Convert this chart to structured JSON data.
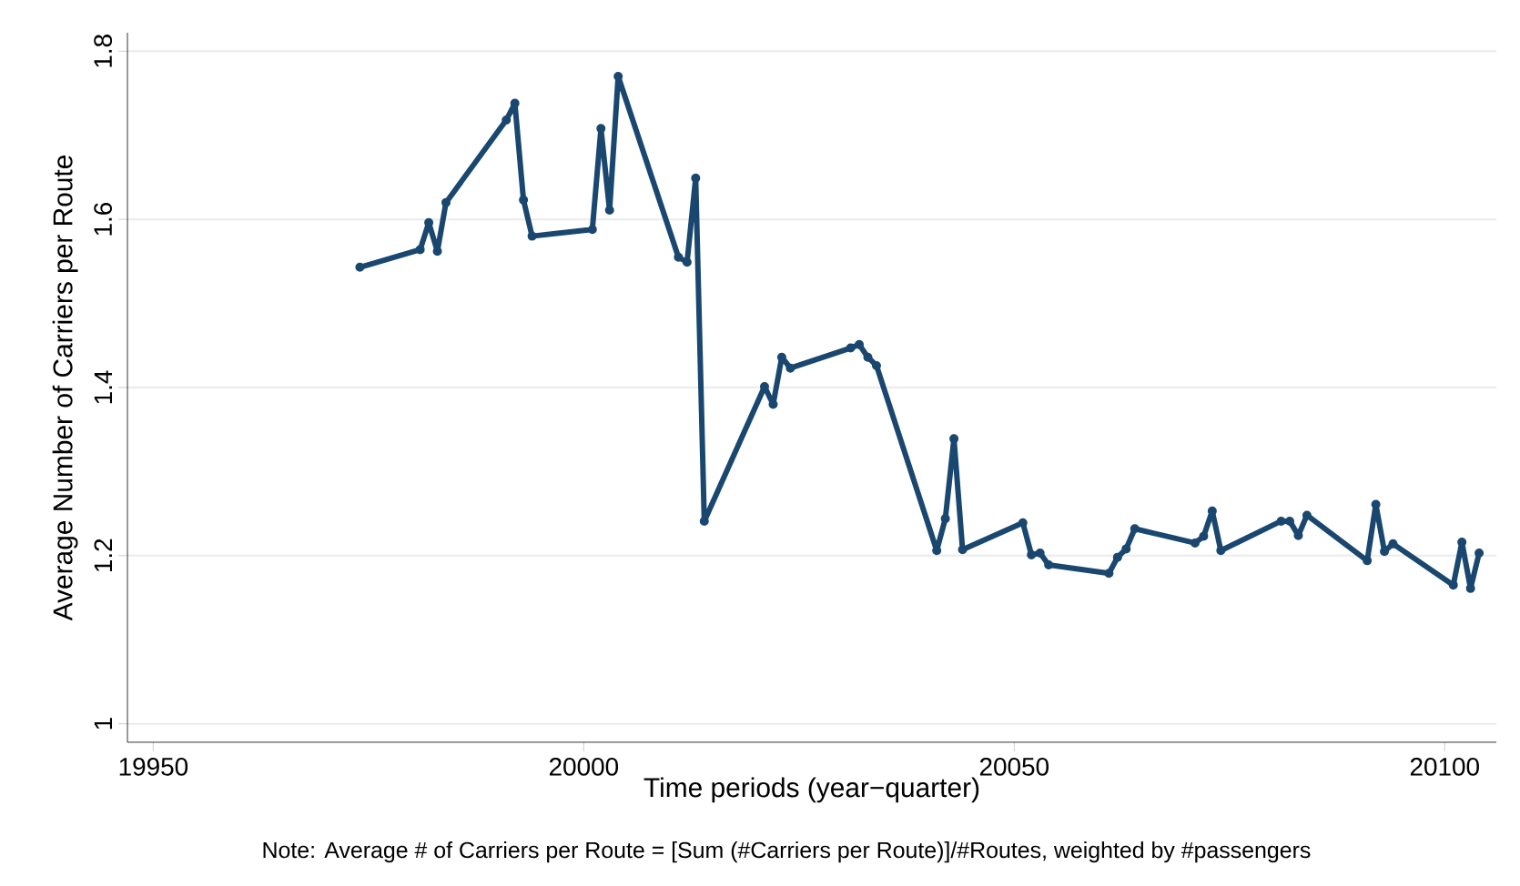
{
  "chart_data": {
    "type": "line",
    "xlabel": "Time periods (year−quarter)",
    "ylabel": "Average Number of Carriers per Route",
    "annotations": [
      "Note: Average # of Carriers per Route = [Sum (#Carriers per Route)]/#Routes, weighted by #passengers"
    ],
    "x": [
      19974,
      19981,
      19982,
      19983,
      19984,
      19991,
      19992,
      19993,
      19994,
      20001,
      20002,
      20003,
      20004,
      20011,
      20012,
      20013,
      20014,
      20021,
      20022,
      20023,
      20024,
      20031,
      20032,
      20033,
      20034,
      20041,
      20042,
      20043,
      20044,
      20051,
      20052,
      20053,
      20054,
      20061,
      20062,
      20063,
      20064,
      20071,
      20072,
      20073,
      20074,
      20081,
      20082,
      20083,
      20084,
      20091,
      20092,
      20093,
      20094,
      20101,
      20102,
      20103,
      20104
    ],
    "series": [
      {
        "color": "#1a476f",
        "values": [
          1.543,
          1.564,
          1.596,
          1.562,
          1.62,
          1.718,
          1.738,
          1.623,
          1.58,
          1.588,
          1.708,
          1.611,
          1.77,
          1.555,
          1.549,
          1.649,
          1.241,
          1.401,
          1.38,
          1.436,
          1.423,
          1.447,
          1.451,
          1.436,
          1.426,
          1.206,
          1.244,
          1.339,
          1.207,
          1.239,
          1.201,
          1.203,
          1.189,
          1.179,
          1.198,
          1.208,
          1.232,
          1.215,
          1.223,
          1.253,
          1.206,
          1.241,
          1.241,
          1.224,
          1.248,
          1.194,
          1.261,
          1.205,
          1.214,
          1.165,
          1.216,
          1.161,
          1.203
        ]
      }
    ],
    "xlim": [
      19947,
      20106
    ],
    "ylim": [
      0.978,
      1.822
    ],
    "xticks": [
      19950,
      20000,
      20050,
      20100
    ],
    "yticks": [
      1,
      1.2,
      1.4,
      1.6,
      1.8
    ],
    "grid": "y",
    "marker": "circle",
    "line_style": "solid"
  }
}
